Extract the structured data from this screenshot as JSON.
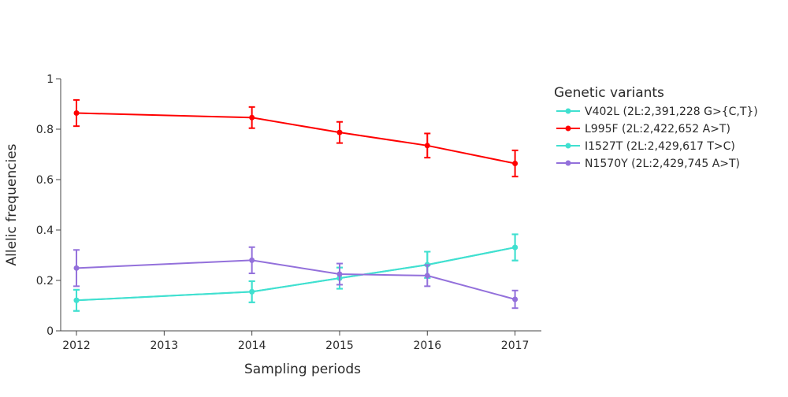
{
  "chart_data": {
    "type": "line",
    "title": "",
    "xlabel": "Sampling periods",
    "ylabel": "Allelic frequencies",
    "xlim": [
      2011.82,
      2017.3
    ],
    "ylim": [
      0,
      1
    ],
    "x_ticks": [
      2012,
      2013,
      2014,
      2015,
      2016,
      2017
    ],
    "y_ticks": [
      0,
      0.2,
      0.4,
      0.6,
      0.8,
      1
    ],
    "y_tick_labels": [
      "0",
      "0.2",
      "0.4",
      "0.6",
      "0.8",
      "1"
    ],
    "grid": false,
    "legend_title": "Genetic variants",
    "legend_position": "right",
    "series": [
      {
        "name": "V402L (2L:2,391,228 G>{C,T})",
        "color": "#40E0D0",
        "x": [
          2012,
          2014,
          2015,
          2016,
          2017
        ],
        "y": [
          0.121,
          0.155,
          0.209,
          0.262,
          0.331
        ],
        "err": [
          0.042,
          0.042,
          0.042,
          0.052,
          0.052
        ]
      },
      {
        "name": "L995F (2L:2,422,652 A>T)",
        "color": "#FF0000",
        "x": [
          2012,
          2014,
          2015,
          2016,
          2017
        ],
        "y": [
          0.864,
          0.846,
          0.787,
          0.735,
          0.664
        ],
        "err": [
          0.052,
          0.042,
          0.042,
          0.048,
          0.052
        ]
      },
      {
        "name": "I1527T (2L:2,429,617 T>C)",
        "color": "#40E0D0",
        "x": [
          2012,
          2014,
          2015,
          2016,
          2017
        ],
        "y": [
          0.121,
          0.155,
          0.209,
          0.262,
          0.331
        ],
        "err": [
          0.042,
          0.042,
          0.042,
          0.052,
          0.052
        ]
      },
      {
        "name": "N1570Y (2L:2,429,745 A>T)",
        "color": "#9370DB",
        "x": [
          2012,
          2014,
          2015,
          2016,
          2017
        ],
        "y": [
          0.249,
          0.28,
          0.225,
          0.219,
          0.125
        ],
        "err": [
          0.072,
          0.052,
          0.042,
          0.042,
          0.035
        ]
      }
    ]
  }
}
